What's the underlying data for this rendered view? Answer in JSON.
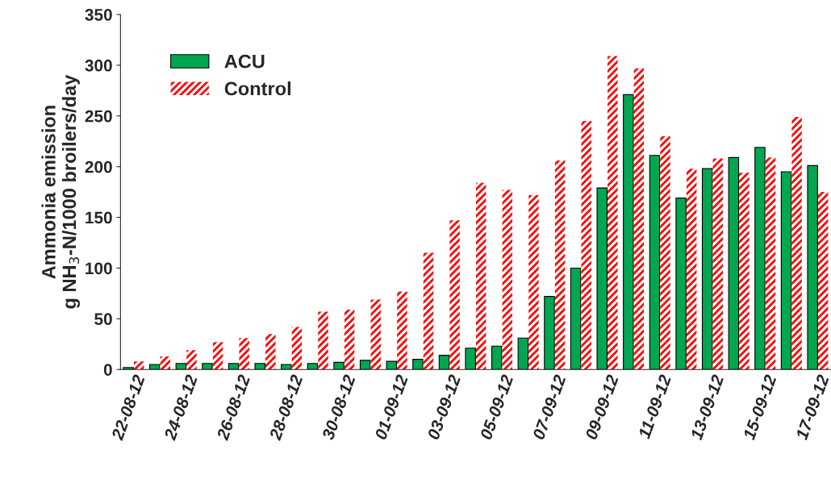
{
  "chart_data": {
    "type": "bar",
    "ylabel": "Ammonia emission\ng NH$_{3}$-N/1000 broilers/day",
    "categories": [
      "22-08-12",
      null,
      "24-08-12",
      null,
      "26-08-12",
      null,
      "28-08-12",
      null,
      "30-08-12",
      null,
      "01-09-12",
      null,
      "03-09-12",
      null,
      "05-09-12",
      null,
      "07-09-12",
      null,
      "09-09-12",
      null,
      "11-09-12",
      null,
      "13-09-12",
      null,
      "15-09-12",
      null,
      "17-09-12"
    ],
    "series": [
      {
        "name": "ACU",
        "color": "#00a650",
        "values": [
          2,
          5,
          6,
          6,
          6,
          6,
          5,
          6,
          7,
          9,
          8,
          10,
          14,
          21,
          23,
          31,
          72,
          100,
          179,
          271,
          211,
          169,
          198,
          209,
          219,
          195,
          201
        ]
      },
      {
        "name": "Control",
        "color": "#ff0000",
        "values": [
          8,
          13,
          19,
          27,
          31,
          35,
          42,
          57,
          59,
          69,
          77,
          115,
          147,
          184,
          177,
          172,
          206,
          245,
          309,
          297,
          230,
          198,
          208,
          194,
          209,
          249,
          175
        ]
      }
    ],
    "ylim": [
      0,
      350
    ],
    "yticks": [
      0,
      50,
      100,
      150,
      200,
      250,
      300,
      350
    ],
    "legend": "top left"
  }
}
